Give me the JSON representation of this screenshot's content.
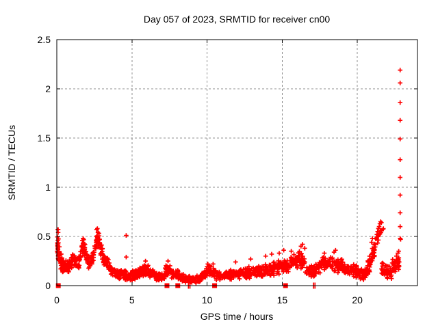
{
  "chart_data": {
    "type": "scatter",
    "title": "Day 057 of 2023, SRMTID for receiver cn00",
    "xlabel": "GPS time / hours",
    "ylabel": "SRMTID / TECUs",
    "xlim": [
      0,
      24
    ],
    "ylim": [
      0,
      2.5
    ],
    "xtick_values": [
      0,
      5,
      10,
      15,
      20
    ],
    "xtick_labels": [
      "0",
      "5",
      "10",
      "15",
      "20"
    ],
    "ytick_values": [
      0,
      0.5,
      1,
      1.5,
      2,
      2.5
    ],
    "ytick_labels": [
      "0",
      "0.5",
      "1",
      "1.5",
      "2",
      "2.5"
    ],
    "grid": "dashed",
    "legend": "none",
    "marker": "plus",
    "colors": {
      "points": "#ff0000",
      "axis": "#000000",
      "grid": "#909090",
      "background": "#ffffff"
    },
    "band_segments": [
      [
        0.03,
        0.12,
        25,
        0.4,
        0.4,
        0.17
      ],
      [
        0.12,
        0.35,
        28,
        0.32,
        0.22,
        0.1
      ],
      [
        0.35,
        0.8,
        40,
        0.2,
        0.18,
        0.07
      ],
      [
        0.8,
        1.15,
        30,
        0.21,
        0.28,
        0.07
      ],
      [
        1.15,
        1.45,
        25,
        0.25,
        0.2,
        0.06
      ],
      [
        1.45,
        1.8,
        28,
        0.22,
        0.42,
        0.08
      ],
      [
        1.8,
        2.1,
        25,
        0.38,
        0.24,
        0.07
      ],
      [
        2.1,
        2.45,
        28,
        0.22,
        0.3,
        0.07
      ],
      [
        2.45,
        2.75,
        26,
        0.32,
        0.52,
        0.07
      ],
      [
        2.75,
        3.1,
        28,
        0.48,
        0.3,
        0.08
      ],
      [
        3.1,
        3.6,
        36,
        0.27,
        0.18,
        0.06
      ],
      [
        3.6,
        4.4,
        52,
        0.15,
        0.11,
        0.05
      ],
      [
        4.4,
        5.2,
        54,
        0.1,
        0.11,
        0.05
      ],
      [
        5.2,
        5.75,
        40,
        0.12,
        0.16,
        0.06
      ],
      [
        5.75,
        6.1,
        28,
        0.17,
        0.15,
        0.07
      ],
      [
        6.1,
        6.6,
        36,
        0.13,
        0.12,
        0.06
      ],
      [
        6.6,
        7.15,
        40,
        0.09,
        0.09,
        0.04
      ],
      [
        7.15,
        7.55,
        28,
        0.13,
        0.17,
        0.06
      ],
      [
        7.55,
        8.1,
        38,
        0.14,
        0.1,
        0.05
      ],
      [
        8.1,
        8.7,
        40,
        0.09,
        0.07,
        0.04
      ],
      [
        8.7,
        9.6,
        58,
        0.06,
        0.07,
        0.035
      ],
      [
        9.6,
        10.15,
        38,
        0.09,
        0.16,
        0.05
      ],
      [
        10.15,
        10.6,
        30,
        0.16,
        0.12,
        0.05
      ],
      [
        10.6,
        11.3,
        46,
        0.09,
        0.11,
        0.04
      ],
      [
        11.3,
        12.4,
        70,
        0.11,
        0.13,
        0.05
      ],
      [
        12.4,
        13.4,
        65,
        0.13,
        0.14,
        0.055
      ],
      [
        13.4,
        14.4,
        65,
        0.14,
        0.17,
        0.06
      ],
      [
        14.4,
        15.4,
        65,
        0.17,
        0.21,
        0.07
      ],
      [
        15.4,
        16.1,
        46,
        0.21,
        0.26,
        0.08
      ],
      [
        16.1,
        16.6,
        34,
        0.27,
        0.22,
        0.09
      ],
      [
        16.6,
        17.2,
        40,
        0.15,
        0.15,
        0.07
      ],
      [
        17.2,
        17.9,
        46,
        0.17,
        0.23,
        0.07
      ],
      [
        17.9,
        19.0,
        70,
        0.22,
        0.2,
        0.075
      ],
      [
        19.0,
        20.0,
        64,
        0.18,
        0.14,
        0.06
      ],
      [
        20.0,
        20.55,
        38,
        0.13,
        0.11,
        0.055
      ],
      [
        20.55,
        20.9,
        28,
        0.13,
        0.24,
        0.08
      ],
      [
        20.9,
        21.2,
        24,
        0.28,
        0.38,
        0.08
      ],
      [
        21.2,
        21.75,
        18,
        0.44,
        0.6,
        0.05
      ],
      [
        21.6,
        22.3,
        46,
        0.16,
        0.13,
        0.08
      ],
      [
        22.3,
        22.8,
        40,
        0.17,
        0.25,
        0.08
      ]
    ],
    "outlier_points": [
      [
        0.02,
        0.35
      ],
      [
        0.07,
        0.57
      ],
      [
        0.09,
        0.54
      ],
      [
        1.7,
        0.46
      ],
      [
        1.75,
        0.48
      ],
      [
        2.65,
        0.57
      ],
      [
        2.7,
        0.58
      ],
      [
        4.62,
        0.51
      ],
      [
        4.62,
        0.29
      ],
      [
        5.9,
        0.25
      ],
      [
        7.4,
        0.25
      ],
      [
        10.05,
        0.22
      ],
      [
        10.4,
        0.22
      ],
      [
        11.9,
        0.24
      ],
      [
        12.9,
        0.27
      ],
      [
        13.9,
        0.3
      ],
      [
        14.3,
        0.32
      ],
      [
        14.8,
        0.33
      ],
      [
        15.1,
        0.36
      ],
      [
        15.6,
        0.35
      ],
      [
        16.25,
        0.4
      ],
      [
        16.35,
        0.42
      ],
      [
        16.5,
        0.38
      ],
      [
        17.8,
        0.33
      ],
      [
        18.45,
        0.34
      ],
      [
        18.55,
        0.36
      ],
      [
        20.95,
        0.44
      ],
      [
        21.0,
        0.48
      ],
      [
        21.3,
        0.52
      ],
      [
        21.35,
        0.55
      ],
      [
        21.4,
        0.58
      ],
      [
        21.45,
        0.6
      ],
      [
        21.5,
        0.63
      ],
      [
        21.55,
        0.65
      ],
      [
        21.6,
        0.64
      ],
      [
        22.6,
        0.3
      ],
      [
        22.7,
        0.33
      ],
      [
        22.75,
        0.35
      ],
      [
        22.88,
        0.47
      ]
    ],
    "column_x": 22.85,
    "column_values": [
      0.48,
      0.6,
      0.74,
      0.92,
      1.1,
      1.28,
      1.49,
      1.68,
      1.86,
      2.06,
      2.19
    ],
    "zero_square_hours": [
      0.1,
      7.33,
      8.05,
      10.5,
      15.22
    ],
    "zero_bar_hours": [
      8.76,
      8.86,
      17.08,
      17.18
    ],
    "seed": 57
  }
}
